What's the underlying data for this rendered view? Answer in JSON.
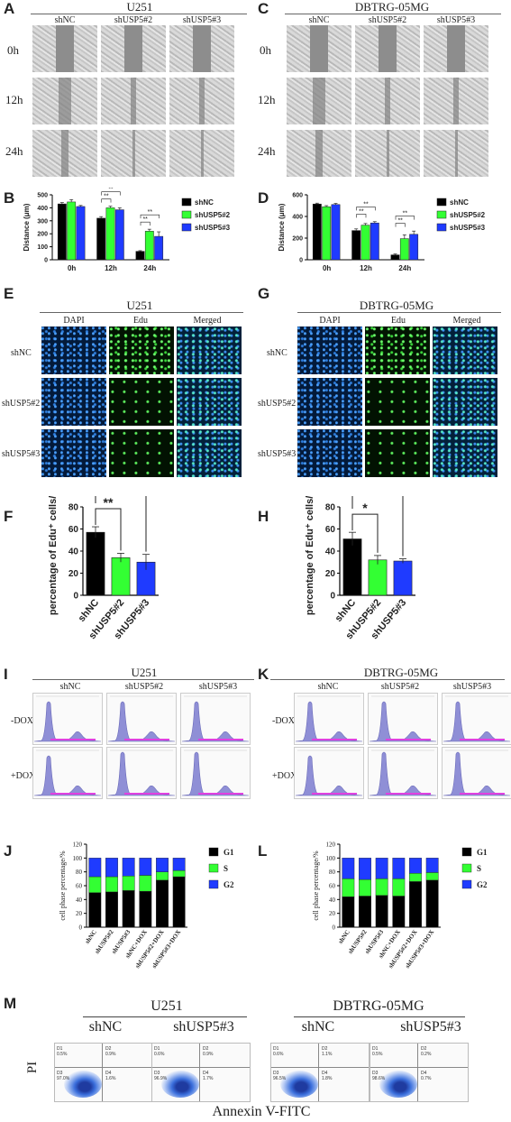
{
  "panels": {
    "A": {
      "letter": "A",
      "cell_line": "U251",
      "columns": [
        "shNC",
        "shUSP5#2",
        "shUSP5#3"
      ],
      "rows": [
        "0h",
        "12h",
        "24h"
      ]
    },
    "C": {
      "letter": "C",
      "cell_line": "DBTRG-05MG",
      "columns": [
        "shNC",
        "shUSP5#2",
        "shUSP5#3"
      ],
      "rows": [
        "0h",
        "12h",
        "24h"
      ]
    },
    "B": {
      "letter": "B"
    },
    "D": {
      "letter": "D"
    },
    "E": {
      "letter": "E",
      "cell_line": "U251",
      "columns": [
        "DAPI",
        "Edu",
        "Merged"
      ],
      "rows": [
        "shNC",
        "shUSP5#2",
        "shUSP5#3"
      ]
    },
    "G": {
      "letter": "G",
      "cell_line": "DBTRG-05MG",
      "columns": [
        "DAPI",
        "Edu",
        "Merged"
      ],
      "rows": [
        "shNC",
        "shUSP5#2",
        "shUSP5#3"
      ]
    },
    "F": {
      "letter": "F"
    },
    "H": {
      "letter": "H"
    },
    "I": {
      "letter": "I",
      "cell_line": "U251",
      "columns": [
        "shNC",
        "shUSP5#2",
        "shUSP5#3"
      ],
      "rows": [
        "-DOX",
        "+DOX"
      ]
    },
    "K": {
      "letter": "K",
      "cell_line": "DBTRG-05MG",
      "columns": [
        "shNC",
        "shUSP5#2",
        "shUSP5#3"
      ],
      "rows": [
        "-DOX",
        "+DOX"
      ]
    },
    "J": {
      "letter": "J"
    },
    "L": {
      "letter": "L"
    },
    "M": {
      "letter": "M",
      "groups": [
        "U251",
        "DBTRG-05MG"
      ],
      "columns": [
        "shNC",
        "shUSP5#3",
        "shNC",
        "shUSP5#3"
      ],
      "ylabel": "PI",
      "xlabel": "Annexin V-FITC",
      "quadrants": [
        {
          "D1": "0.5%",
          "D2": "0.9%",
          "D3": "97.0%",
          "D4": "1.6%"
        },
        {
          "D1": "0.6%",
          "D2": "0.9%",
          "D3": "96.9%",
          "D4": "1.7%"
        },
        {
          "D1": "0.6%",
          "D2": "1.1%",
          "D3": "96.5%",
          "D4": "1.8%"
        },
        {
          "D1": "0.5%",
          "D2": "0.2%",
          "D3": "98.6%",
          "D4": "0.7%"
        }
      ]
    }
  },
  "colors": {
    "shNC": "#000000",
    "shUSP5_2": "#33ff33",
    "shUSP5_3": "#1f3bff"
  },
  "chart_data": [
    {
      "id": "B",
      "type": "bar",
      "categories": [
        "0h",
        "12h",
        "24h"
      ],
      "ylabel": "Distance (μm)",
      "ylim": [
        0,
        500
      ],
      "yticks": [
        0,
        100,
        200,
        300,
        400,
        500
      ],
      "series": [
        {
          "name": "shNC",
          "values": [
            430,
            320,
            65
          ]
        },
        {
          "name": "shUSP5#2",
          "values": [
            445,
            400,
            220
          ]
        },
        {
          "name": "shUSP5#3",
          "values": [
            410,
            385,
            180
          ]
        }
      ],
      "errors": [
        [
          10,
          12,
          5
        ],
        [
          18,
          12,
          15
        ],
        [
          8,
          15,
          35
        ]
      ],
      "significance": "**"
    },
    {
      "id": "D",
      "type": "bar",
      "categories": [
        "0h",
        "12h",
        "24h"
      ],
      "ylabel": "Distance (μm)",
      "ylim": [
        0,
        600
      ],
      "yticks": [
        0,
        200,
        400,
        600
      ],
      "series": [
        {
          "name": "shNC",
          "values": [
            515,
            270,
            45
          ]
        },
        {
          "name": "shUSP5#2",
          "values": [
            490,
            320,
            195
          ]
        },
        {
          "name": "shUSP5#3",
          "values": [
            510,
            340,
            235
          ]
        }
      ],
      "errors": [
        [
          8,
          15,
          8
        ],
        [
          10,
          15,
          35
        ],
        [
          10,
          12,
          30
        ]
      ],
      "significance": "**"
    },
    {
      "id": "F",
      "type": "bar",
      "categories": [
        "shNC",
        "shUSP5#2",
        "shUSP5#3"
      ],
      "ylabel": "percentage of Edu⁺ cells/%",
      "ylim": [
        0,
        80
      ],
      "yticks": [
        0,
        20,
        40,
        60,
        80
      ],
      "values": [
        57,
        34,
        30
      ],
      "errors": [
        5,
        4,
        7
      ],
      "significance": [
        "**",
        "**"
      ]
    },
    {
      "id": "H",
      "type": "bar",
      "categories": [
        "shNC",
        "shUSP5#2",
        "shUSP5#3"
      ],
      "ylabel": "percentage of Edu⁺ cells/%",
      "ylim": [
        0,
        80
      ],
      "yticks": [
        0,
        20,
        40,
        60,
        80
      ],
      "values": [
        51,
        32,
        31
      ],
      "errors": [
        6,
        4,
        2
      ],
      "significance": [
        "*",
        "**"
      ]
    },
    {
      "id": "J",
      "type": "bar",
      "stacked": true,
      "categories": [
        "shNC",
        "shUSP5#2",
        "shUSP5#3",
        "shNC+DOX",
        "shUSP5#2+DOX",
        "shUSP5#3+DOX"
      ],
      "ylabel": "cell phase percentage/%",
      "ylim": [
        0,
        120
      ],
      "yticks": [
        0,
        20,
        40,
        60,
        80,
        100,
        120
      ],
      "series": [
        {
          "name": "G1",
          "values": [
            50,
            51,
            53,
            52,
            68,
            73
          ]
        },
        {
          "name": "S",
          "values": [
            23,
            22,
            21,
            23,
            12,
            9
          ]
        },
        {
          "name": "G2",
          "values": [
            27,
            27,
            26,
            25,
            20,
            18
          ]
        }
      ]
    },
    {
      "id": "L",
      "type": "bar",
      "stacked": true,
      "categories": [
        "shNC",
        "shUSP5#2",
        "shUSP5#3",
        "shNC+DOX",
        "shUSP5#2+DOX",
        "shUSP5#3+DOX"
      ],
      "ylabel": "cell phase percentage/%",
      "ylim": [
        0,
        120
      ],
      "yticks": [
        0,
        20,
        40,
        60,
        80,
        100,
        120
      ],
      "series": [
        {
          "name": "G1",
          "values": [
            44,
            45,
            46,
            45,
            66,
            68
          ]
        },
        {
          "name": "S",
          "values": [
            26,
            24,
            24,
            25,
            12,
            11
          ]
        },
        {
          "name": "G2",
          "values": [
            30,
            31,
            30,
            30,
            22,
            21
          ]
        }
      ]
    }
  ]
}
